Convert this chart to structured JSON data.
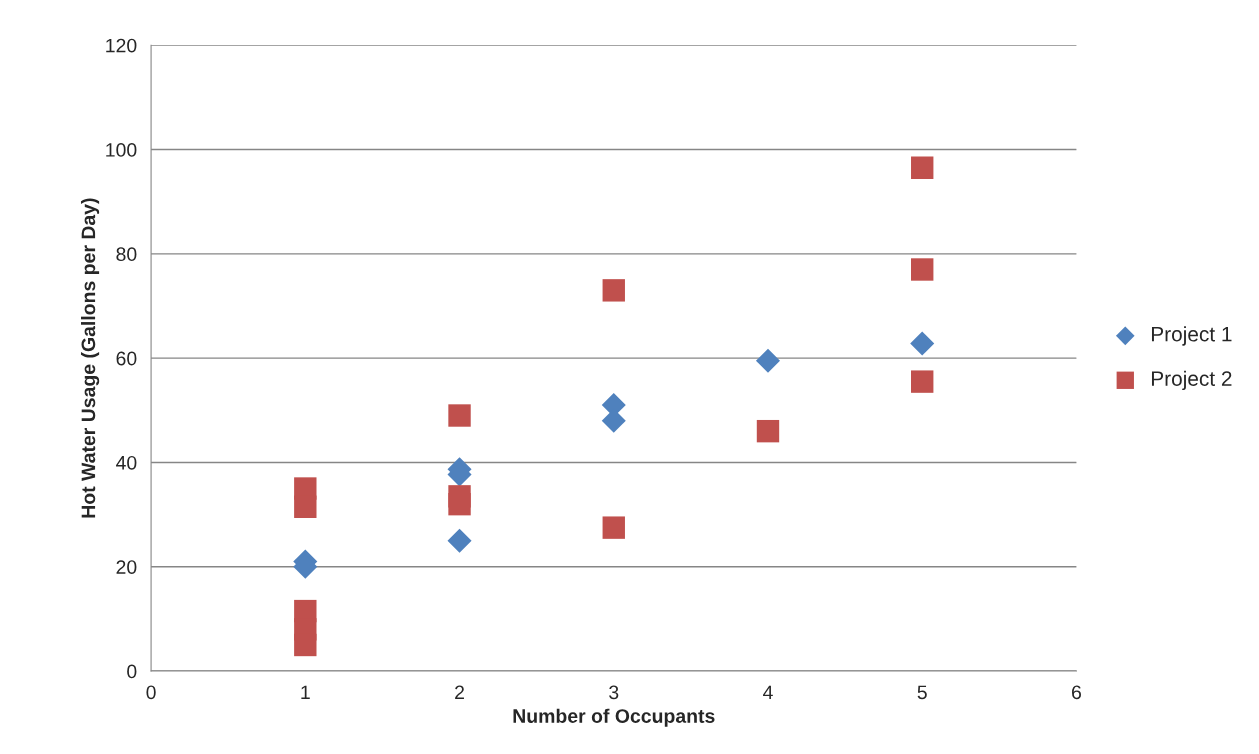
{
  "chart_data": {
    "type": "scatter",
    "xlabel": "Number of Occupants",
    "ylabel": "Hot Water Usage (Gallons per Day)",
    "xlim": [
      0,
      6
    ],
    "xticks": [
      0,
      1,
      2,
      3,
      4,
      5,
      6
    ],
    "ylim": [
      0,
      120
    ],
    "yticks": [
      0,
      20,
      40,
      60,
      80,
      100,
      120
    ],
    "grid": "y",
    "legend": "right",
    "series": [
      {
        "name": "Project 1",
        "color": "#4f81bd",
        "marker": "diamond",
        "x": [
          1,
          1,
          2,
          2,
          2,
          3,
          3,
          4,
          5
        ],
        "values": [
          21,
          20,
          38.7,
          37.7,
          25,
          51,
          48,
          59.5,
          62.8
        ]
      },
      {
        "name": "Project 2",
        "color": "#c0504d",
        "marker": "square",
        "x": [
          1,
          1,
          1,
          1,
          1,
          2,
          2,
          2,
          3,
          3,
          4,
          5,
          5,
          5
        ],
        "values": [
          35,
          31.5,
          11.5,
          8,
          5,
          49,
          33.5,
          32,
          73,
          27.5,
          46,
          96.5,
          77,
          55.5
        ]
      }
    ]
  }
}
